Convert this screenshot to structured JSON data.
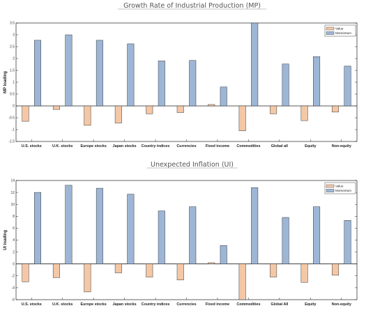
{
  "colors": {
    "value": "#f4c7a6",
    "momentum": "#9db6d6",
    "bar_stroke": "#333333"
  },
  "chart_data": [
    {
      "type": "bar",
      "title": "Growth Rate of Industrial Production (MP)",
      "ylabel": "MP loading",
      "ylim": [
        -1.5,
        3.5
      ],
      "yticks": [
        -1.5,
        -1,
        -0.5,
        0,
        0.5,
        1,
        1.5,
        2,
        2.5,
        3,
        3.5
      ],
      "ytick_labels": [
        "-1.5",
        "-1",
        "-0.5",
        "0",
        "0.5",
        "1",
        "1.5",
        "2",
        "2.5",
        "3",
        "3.5"
      ],
      "legend": "top-right",
      "categories": [
        "U.S. stocks",
        "U.K. stocks",
        "Europe stocks",
        "Japan stocks",
        "Country indices",
        "Currencies",
        "Fixed income",
        "Commodities",
        "Global all",
        "Equity",
        "Non-equity"
      ],
      "series": [
        {
          "name": "Value",
          "values": [
            -0.65,
            -0.15,
            -0.82,
            -0.72,
            -0.33,
            -0.28,
            0.06,
            -1.05,
            -0.33,
            -0.62,
            -0.26
          ]
        },
        {
          "name": "Momentum",
          "values": [
            2.77,
            3.0,
            2.77,
            2.62,
            1.9,
            1.92,
            0.8,
            3.5,
            1.77,
            2.08,
            1.68
          ]
        }
      ]
    },
    {
      "type": "bar",
      "title": "Unexpected Inflation (UI)",
      "ylabel": "UI loading",
      "ylim": [
        -6,
        14
      ],
      "yticks": [
        -6,
        -4,
        -2,
        0,
        2,
        4,
        6,
        8,
        10,
        12,
        14
      ],
      "ytick_labels": [
        "-6",
        "-4",
        "-2",
        "0",
        "2",
        "4",
        "6",
        "8",
        "10",
        "12",
        "14"
      ],
      "legend": "top-right",
      "categories": [
        "U.S. stocks",
        "U.K. stocks",
        "Europe stocks",
        "Japan stocks",
        "Country indices",
        "Currencies",
        "Fixed income",
        "Commodities",
        "Global All",
        "Equity",
        "Non-equity"
      ],
      "series": [
        {
          "name": "Value",
          "values": [
            -3.0,
            -2.3,
            -4.7,
            -1.5,
            -2.2,
            -2.7,
            0.2,
            -6.0,
            -2.2,
            -3.1,
            -1.9
          ]
        },
        {
          "name": "Momentum",
          "values": [
            12.0,
            13.2,
            12.7,
            11.7,
            8.9,
            9.6,
            3.1,
            12.8,
            7.8,
            9.6,
            7.3
          ]
        }
      ]
    }
  ]
}
